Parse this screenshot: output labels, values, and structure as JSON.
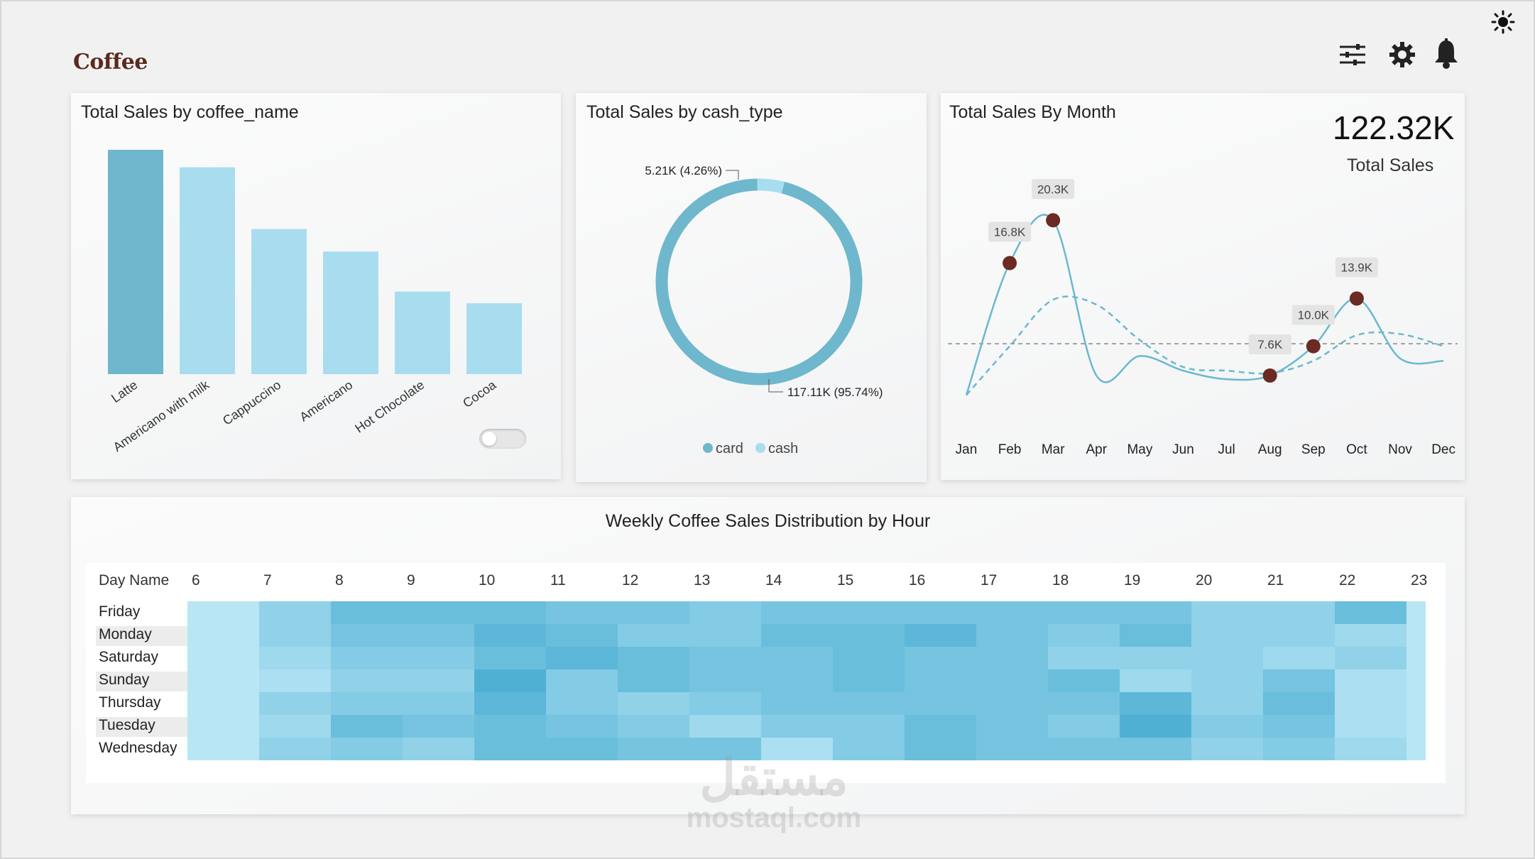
{
  "brand": {
    "logo_text": "Coffee"
  },
  "toolbar": {
    "icons": [
      "sun-icon",
      "filter-sliders-icon",
      "gear-icon",
      "bell-icon"
    ]
  },
  "colors": {
    "bar_dark": "#6fb7cc",
    "bar_light": "#a8ddf0",
    "line": "#6bb8d0",
    "marker": "#6b2a22",
    "heat_low": "#b8e6f5",
    "heat_high": "#4fb0d4"
  },
  "coffee_panel": {
    "title": "Total Sales by coffee_name",
    "chart_data": {
      "type": "bar",
      "categories": [
        "Latte",
        "Americano with milk",
        "Cappuccino",
        "Americano",
        "Hot Chocolate",
        "Cocoa"
      ],
      "values": [
        26.9,
        24.8,
        17.4,
        14.7,
        9.9,
        8.5
      ],
      "highlight_index": 0,
      "legend": "none"
    }
  },
  "cash_panel": {
    "title": "Total Sales by cash_type",
    "chart_data": {
      "type": "pie",
      "style": "donut",
      "slices": [
        {
          "name": "card",
          "value": 117.11,
          "label": "117.11K (95.74%)",
          "color": "#6fb7cc"
        },
        {
          "name": "cash",
          "value": 5.21,
          "label": "5.21K (4.26%)",
          "color": "#a8ddf0"
        }
      ],
      "legend_placement": "bottom"
    }
  },
  "month_panel": {
    "title": "Total Sales By Month",
    "kpi_value": "122.32K",
    "kpi_label": "Total Sales",
    "chart_data": {
      "type": "line",
      "x": [
        "Jan",
        "Feb",
        "Mar",
        "Apr",
        "May",
        "Jun",
        "Jul",
        "Aug",
        "Sep",
        "Oct",
        "Nov",
        "Dec"
      ],
      "series": [
        {
          "values": [
            null,
            16.8,
            20.3,
            null,
            null,
            null,
            null,
            7.6,
            10.0,
            13.9,
            null,
            null
          ]
        }
      ],
      "curve_values": [
        6.0,
        16.8,
        20.3,
        7.6,
        9.2,
        8.0,
        7.3,
        7.6,
        10.0,
        13.9,
        9.0,
        8.8
      ],
      "trend_values": [
        6.0,
        10.0,
        13.8,
        13.4,
        10.5,
        8.3,
        8.0,
        7.8,
        8.8,
        10.9,
        11.0,
        10.0
      ],
      "average": 10.2,
      "data_labels": [
        "16.8K",
        "20.3K",
        "7.6K",
        "10.0K",
        "13.9K"
      ],
      "labeled_months": [
        "Feb",
        "Mar",
        "Aug",
        "Sep",
        "Oct"
      ],
      "ylim": [
        4,
        22
      ]
    }
  },
  "heatmap_panel": {
    "title": "Weekly Coffee Sales Distribution by Hour",
    "chart_data": {
      "type": "heatmap",
      "row_header": "Day Name",
      "columns": [
        "6",
        "7",
        "8",
        "9",
        "10",
        "11",
        "12",
        "13",
        "14",
        "15",
        "16",
        "17",
        "18",
        "19",
        "20",
        "21",
        "22",
        "23"
      ],
      "rows": [
        "Friday",
        "Monday",
        "Saturday",
        "Sunday",
        "Thursday",
        "Tuesday",
        "Wednesday"
      ],
      "values": [
        [
          1,
          4,
          7,
          7,
          7,
          6,
          6,
          5,
          6,
          6,
          6,
          6,
          6,
          6,
          4,
          4,
          7,
          1
        ],
        [
          1,
          4,
          6,
          6,
          8,
          7,
          5,
          5,
          7,
          7,
          8,
          6,
          5,
          7,
          4,
          4,
          3,
          1
        ],
        [
          1,
          3,
          5,
          5,
          7,
          8,
          7,
          6,
          6,
          7,
          6,
          6,
          4,
          4,
          4,
          3,
          4,
          1
        ],
        [
          1,
          2,
          4,
          4,
          9,
          5,
          7,
          6,
          6,
          7,
          6,
          6,
          7,
          3,
          4,
          6,
          2,
          1
        ],
        [
          1,
          4,
          5,
          5,
          8,
          5,
          4,
          5,
          6,
          6,
          6,
          6,
          6,
          8,
          4,
          7,
          2,
          1
        ],
        [
          1,
          3,
          7,
          6,
          7,
          6,
          5,
          3,
          5,
          5,
          7,
          6,
          5,
          9,
          5,
          6,
          2,
          1
        ],
        [
          1,
          4,
          5,
          4,
          7,
          7,
          6,
          6,
          2,
          5,
          7,
          6,
          6,
          6,
          4,
          5,
          3,
          1
        ]
      ],
      "scale": [
        1,
        9
      ]
    }
  },
  "watermark": {
    "arabic": "مستقل",
    "latin": "mostaql.com"
  }
}
